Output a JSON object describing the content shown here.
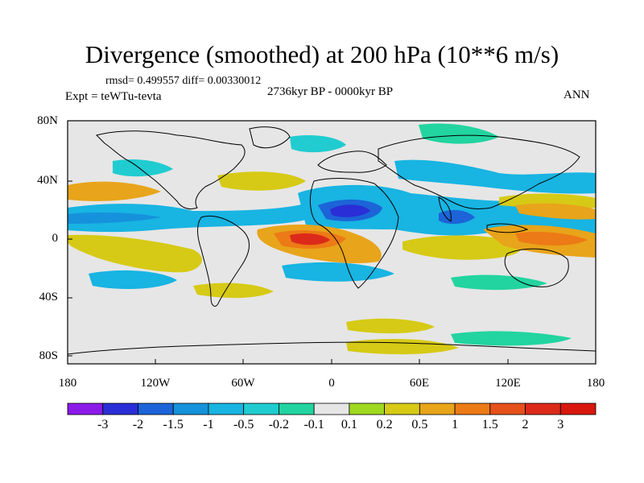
{
  "title": "Divergence (smoothed) at 200 hPa (10**6 m/s)",
  "stats": "rmsd= 0.499557 diff= 0.00330012",
  "experiment": "Expt = teWTu-tevta",
  "period": "2736kyr BP - 0000kyr BP",
  "season": "ANN",
  "lat_ticks": [
    "80N",
    "40N",
    "0",
    "40S",
    "80S"
  ],
  "lon_ticks": [
    "180",
    "120W",
    "60W",
    "0",
    "60E",
    "120E",
    "180"
  ],
  "colorbar": {
    "labels": [
      "-3",
      "-2",
      "-1.5",
      "-1",
      "-0.5",
      "-0.2",
      "-0.1",
      "0.1",
      "0.2",
      "0.5",
      "1",
      "1.5",
      "2",
      "3"
    ],
    "colors": [
      "#8b1ae8",
      "#2a2ed6",
      "#1c64d8",
      "#1592db",
      "#18b4e2",
      "#20ccd0",
      "#22d4a0",
      "#e6e6e6",
      "#9fd820",
      "#d6ca16",
      "#e8a41a",
      "#ec7a16",
      "#e6501a",
      "#dc2a1a",
      "#d8180e"
    ]
  },
  "colors": {
    "land_background": "#e6e6e6",
    "coastline": "#000000"
  }
}
